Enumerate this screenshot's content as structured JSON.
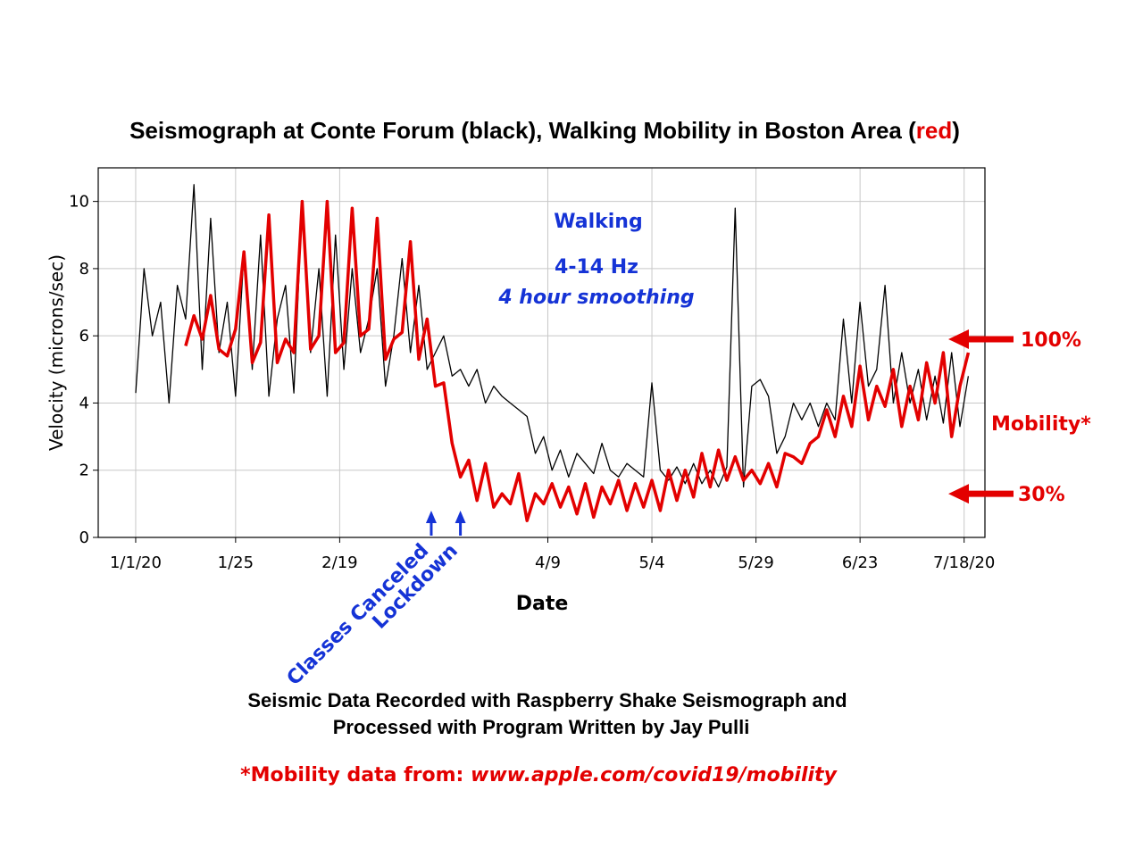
{
  "chart_data": {
    "type": "line",
    "title_parts": [
      "Seismograph at Conte Forum (black), Walking Mobility in Boston Area (",
      "red",
      ")"
    ],
    "xlabel": "Date",
    "ylabel": "Velocity (microns/sec)",
    "x_tick_labels": [
      "1/1/20",
      "1/25",
      "2/19",
      "4/9",
      "5/4",
      "5/29",
      "6/23",
      "7/18/20"
    ],
    "x_tick_days": [
      0,
      24,
      49,
      99,
      124,
      149,
      174,
      199
    ],
    "y_ticks": [
      0,
      2,
      4,
      6,
      8,
      10
    ],
    "ylim": [
      0,
      11
    ],
    "xlim_days": [
      -9,
      204
    ],
    "grid": true,
    "series": [
      {
        "color": "#000000",
        "x_days": [
          0,
          2,
          4,
          6,
          8,
          10,
          12,
          14,
          16,
          18,
          20,
          22,
          24,
          26,
          28,
          30,
          32,
          34,
          36,
          38,
          40,
          42,
          44,
          46,
          48,
          50,
          52,
          54,
          56,
          58,
          60,
          62,
          64,
          66,
          68,
          70,
          72,
          74,
          76,
          78,
          80,
          82,
          84,
          86,
          88,
          90,
          92,
          94,
          96,
          98,
          100,
          102,
          104,
          106,
          108,
          110,
          112,
          114,
          116,
          118,
          120,
          122,
          124,
          126,
          128,
          130,
          132,
          134,
          136,
          138,
          140,
          142,
          144,
          146,
          148,
          150,
          152,
          154,
          156,
          158,
          160,
          162,
          164,
          166,
          168,
          170,
          172,
          174,
          176,
          178,
          180,
          182,
          184,
          186,
          188,
          190,
          192,
          194,
          196,
          198,
          200
        ],
        "values": [
          4.3,
          8.0,
          6.0,
          7.0,
          4.0,
          7.5,
          6.5,
          10.5,
          5.0,
          9.5,
          5.5,
          7.0,
          4.2,
          8.5,
          5.0,
          9.0,
          4.2,
          6.5,
          7.5,
          4.3,
          10.0,
          5.5,
          8.0,
          4.2,
          9.0,
          5.0,
          8.0,
          5.5,
          6.5,
          8.0,
          4.5,
          6.0,
          8.3,
          5.5,
          7.5,
          5.0,
          5.5,
          6.0,
          4.8,
          5.0,
          4.5,
          5.0,
          4.0,
          4.5,
          4.2,
          4.0,
          3.8,
          3.6,
          2.5,
          3.0,
          2.0,
          2.6,
          1.8,
          2.5,
          2.2,
          1.9,
          2.8,
          2.0,
          1.8,
          2.2,
          2.0,
          1.8,
          4.6,
          2.0,
          1.7,
          2.1,
          1.6,
          2.2,
          1.6,
          2.0,
          1.5,
          2.1,
          9.8,
          1.5,
          4.5,
          4.7,
          4.2,
          2.5,
          3.0,
          4.0,
          3.5,
          4.0,
          3.3,
          4.0,
          3.5,
          6.5,
          4.0,
          7.0,
          4.5,
          5.0,
          7.5,
          4.0,
          5.5,
          4.0,
          5.0,
          3.5,
          4.8,
          3.4,
          5.5,
          3.3,
          4.8
        ]
      },
      {
        "color": "#e30000",
        "x_days": [
          12,
          14,
          16,
          18,
          20,
          22,
          24,
          26,
          28,
          30,
          32,
          34,
          36,
          38,
          40,
          42,
          44,
          46,
          48,
          50,
          52,
          54,
          56,
          58,
          60,
          62,
          64,
          66,
          68,
          70,
          72,
          74,
          76,
          78,
          80,
          82,
          84,
          86,
          88,
          90,
          92,
          94,
          96,
          98,
          100,
          102,
          104,
          106,
          108,
          110,
          112,
          114,
          116,
          118,
          120,
          122,
          124,
          126,
          128,
          130,
          132,
          134,
          136,
          138,
          140,
          142,
          144,
          146,
          148,
          150,
          152,
          154,
          156,
          158,
          160,
          162,
          164,
          166,
          168,
          170,
          172,
          174,
          176,
          178,
          180,
          182,
          184,
          186,
          188,
          190,
          192,
          194,
          196,
          198,
          200
        ],
        "values": [
          5.7,
          6.6,
          5.9,
          7.2,
          5.6,
          5.4,
          6.2,
          8.5,
          5.2,
          5.8,
          9.6,
          5.2,
          5.9,
          5.5,
          10.0,
          5.6,
          6.0,
          10.0,
          5.5,
          5.8,
          9.8,
          6.0,
          6.2,
          9.5,
          5.3,
          5.9,
          6.1,
          8.8,
          5.3,
          6.5,
          4.5,
          4.6,
          2.8,
          1.8,
          2.3,
          1.1,
          2.2,
          0.9,
          1.3,
          1.0,
          1.9,
          0.5,
          1.3,
          1.0,
          1.6,
          0.9,
          1.5,
          0.7,
          1.6,
          0.6,
          1.5,
          1.0,
          1.7,
          0.8,
          1.6,
          0.9,
          1.7,
          0.8,
          2.0,
          1.1,
          2.0,
          1.2,
          2.5,
          1.5,
          2.6,
          1.7,
          2.4,
          1.7,
          2.0,
          1.6,
          2.2,
          1.5,
          2.5,
          2.4,
          2.2,
          2.8,
          3.0,
          3.8,
          3.0,
          4.2,
          3.3,
          5.1,
          3.5,
          4.5,
          3.9,
          5.0,
          3.3,
          4.5,
          3.5,
          5.2,
          4.0,
          5.5,
          3.0,
          4.5,
          5.5
        ]
      }
    ],
    "event_annotations": [
      {
        "label": "Classes Canceled",
        "day": 71
      },
      {
        "label": "Lockdown",
        "day": 78
      }
    ],
    "text_annotations": {
      "walking": "Walking",
      "band": "4-14 Hz",
      "smoothing": "4 hour smoothing",
      "level_100": "100%",
      "level_30": "30%",
      "mobility": "Mobility*"
    },
    "level_arrows": {
      "level_100_y": 5.9,
      "level_30_y": 1.3
    }
  },
  "footer": {
    "line1": "Seismic Data Recorded with Raspberry Shake Seismograph and",
    "line2": "Processed with Program Written by Jay Pulli",
    "source_prefix": "*Mobility data from: ",
    "source_url": "www.apple.com/covid19/mobility"
  },
  "colors": {
    "accent_red": "#e30000",
    "annotation_blue": "#1533d6"
  }
}
